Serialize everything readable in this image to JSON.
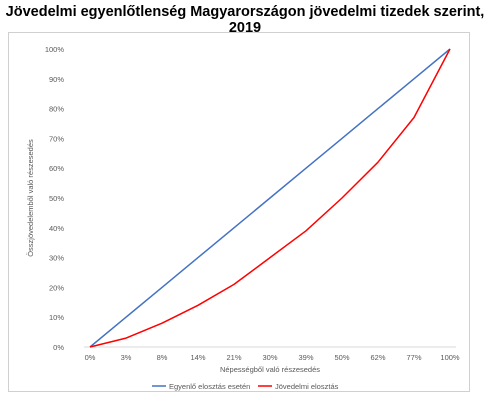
{
  "chart_data": {
    "type": "line",
    "title": "Jövedelmi egyenlőtlenség Magyarországon jövedelmi tizedek szerint, 2019",
    "xlabel": "Népességből való részesedés",
    "ylabel": "Összjövedelemből való részesedés",
    "categories": [
      "0%",
      "3%",
      "8%",
      "14%",
      "21%",
      "30%",
      "39%",
      "50%",
      "62%",
      "77%",
      "100%"
    ],
    "y_ticks": [
      "0%",
      "10%",
      "20%",
      "30%",
      "40%",
      "50%",
      "60%",
      "70%",
      "80%",
      "90%",
      "100%"
    ],
    "ylim": [
      0,
      100
    ],
    "grid": false,
    "legend_position": "bottom",
    "series": [
      {
        "name": "Egyenlő elosztás esetén",
        "color": "#4472c4",
        "values": [
          0,
          10,
          20,
          30,
          40,
          50,
          60,
          70,
          80,
          90,
          100
        ]
      },
      {
        "name": "Jövedelmi elosztás",
        "color": "#ff0000",
        "values": [
          0,
          3,
          8,
          14,
          21,
          30,
          39,
          50,
          62,
          77,
          100
        ]
      }
    ]
  }
}
